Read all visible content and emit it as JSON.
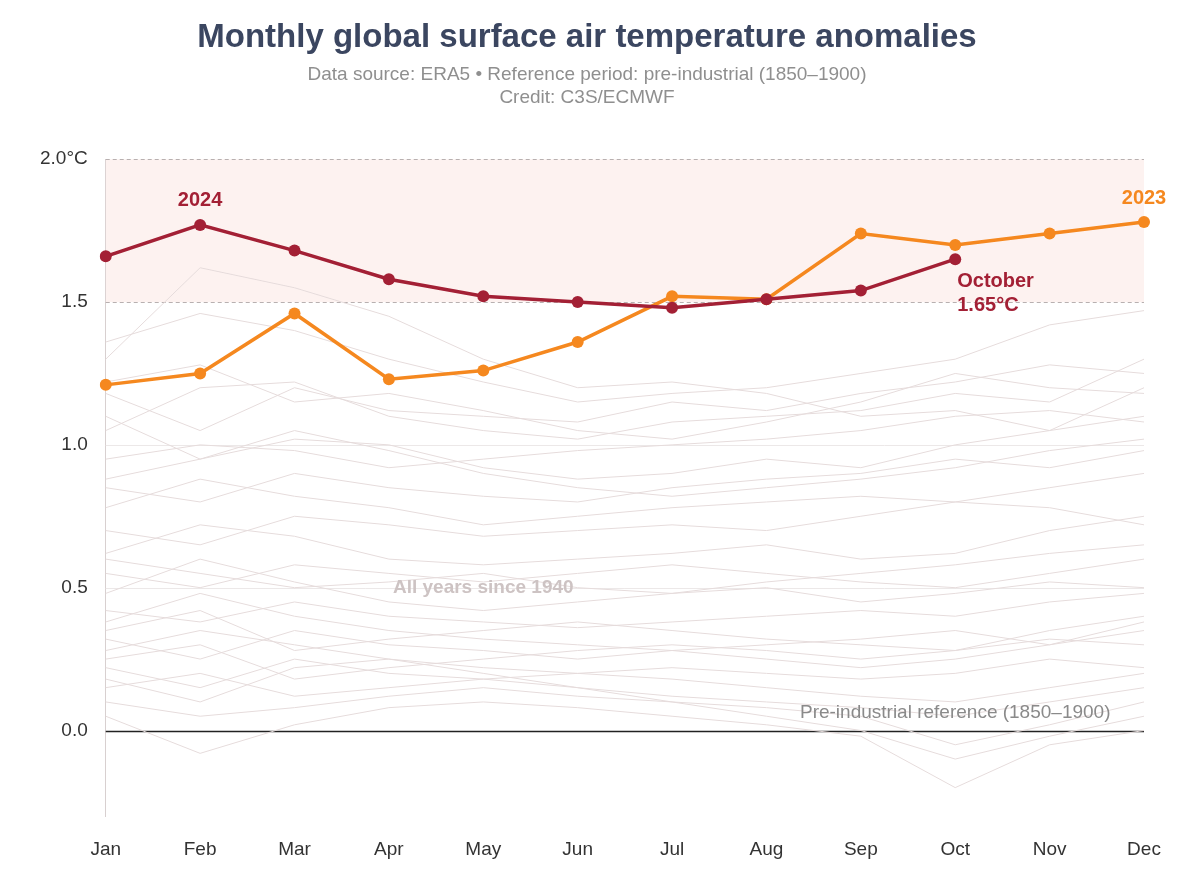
{
  "chart_data": {
    "type": "line",
    "title": "Monthly global surface air temperature anomalies",
    "subtitle": [
      "Data source: ERA5 • Reference period: pre-industrial (1850–1900)",
      "Credit: C3S/ECMWF"
    ],
    "categories": [
      "Jan",
      "Feb",
      "Mar",
      "Apr",
      "May",
      "Jun",
      "Jul",
      "Aug",
      "Sep",
      "Oct",
      "Nov",
      "Dec"
    ],
    "ylim": [
      -0.3,
      2.0
    ],
    "yticks": [
      {
        "value": 0,
        "label": "0.0"
      },
      {
        "value": 0.5,
        "label": "0.5"
      },
      {
        "value": 1,
        "label": "1.0"
      },
      {
        "value": 1.5,
        "label": "1.5"
      },
      {
        "value": 2,
        "label": "2.0°C"
      }
    ],
    "shaded_band": [
      1.5,
      2.0
    ],
    "grid": true,
    "series": [
      {
        "name": "2024",
        "color": "#a32035",
        "marker": "circle",
        "values": [
          1.66,
          1.77,
          1.68,
          1.58,
          1.52,
          1.5,
          1.48,
          1.51,
          1.54,
          1.65,
          null,
          null
        ]
      },
      {
        "name": "2023",
        "color": "#f5881f",
        "marker": "circle",
        "values": [
          1.21,
          1.25,
          1.46,
          1.23,
          1.26,
          1.36,
          1.52,
          1.51,
          1.74,
          1.7,
          1.74,
          1.78
        ]
      },
      {
        "color": "#e6dcdc",
        "marker": "none",
        "values": [
          1.36,
          1.46,
          1.4,
          1.3,
          1.22,
          1.15,
          1.18,
          1.2,
          1.25,
          1.3,
          1.42,
          1.47
        ]
      },
      {
        "color": "#e6dcdc",
        "marker": "none",
        "values": [
          1.3,
          1.62,
          1.55,
          1.45,
          1.3,
          1.2,
          1.22,
          1.18,
          1.1,
          1.12,
          1.05,
          1.2
        ]
      },
      {
        "color": "#e6dcdc",
        "marker": "none",
        "values": [
          1.18,
          1.05,
          1.2,
          1.12,
          1.1,
          1.08,
          1.15,
          1.12,
          1.18,
          1.22,
          1.28,
          1.25
        ]
      },
      {
        "color": "#e6dcdc",
        "marker": "none",
        "values": [
          1.05,
          1.2,
          1.22,
          1.1,
          1.05,
          1.02,
          1.08,
          1.1,
          1.12,
          1.18,
          1.15,
          1.3
        ]
      },
      {
        "color": "#e6dcdc",
        "marker": "none",
        "values": [
          0.95,
          1.0,
          0.98,
          0.92,
          0.95,
          0.98,
          1.0,
          1.02,
          1.05,
          1.1,
          1.12,
          1.08
        ]
      },
      {
        "color": "#e6dcdc",
        "marker": "none",
        "values": [
          1.1,
          0.95,
          1.02,
          1.0,
          0.92,
          0.88,
          0.9,
          0.95,
          0.92,
          1.0,
          1.05,
          1.1
        ]
      },
      {
        "color": "#e6dcdc",
        "marker": "none",
        "values": [
          0.85,
          0.8,
          0.9,
          0.85,
          0.82,
          0.8,
          0.85,
          0.88,
          0.9,
          0.95,
          0.92,
          0.98
        ]
      },
      {
        "color": "#e6dcdc",
        "marker": "none",
        "values": [
          0.78,
          0.88,
          0.82,
          0.78,
          0.72,
          0.75,
          0.78,
          0.8,
          0.82,
          0.8,
          0.85,
          0.9
        ]
      },
      {
        "color": "#e6dcdc",
        "marker": "none",
        "values": [
          0.7,
          0.65,
          0.75,
          0.72,
          0.68,
          0.7,
          0.72,
          0.7,
          0.75,
          0.8,
          0.78,
          0.72
        ]
      },
      {
        "color": "#e6dcdc",
        "marker": "none",
        "values": [
          0.62,
          0.72,
          0.68,
          0.6,
          0.58,
          0.6,
          0.62,
          0.65,
          0.6,
          0.62,
          0.7,
          0.75
        ]
      },
      {
        "color": "#e6dcdc",
        "marker": "none",
        "values": [
          0.55,
          0.5,
          0.58,
          0.55,
          0.52,
          0.55,
          0.58,
          0.55,
          0.52,
          0.5,
          0.55,
          0.6
        ]
      },
      {
        "color": "#e6dcdc",
        "marker": "none",
        "values": [
          0.48,
          0.6,
          0.52,
          0.45,
          0.42,
          0.45,
          0.48,
          0.5,
          0.45,
          0.48,
          0.52,
          0.5
        ]
      },
      {
        "color": "#e6dcdc",
        "marker": "none",
        "values": [
          0.42,
          0.38,
          0.45,
          0.4,
          0.38,
          0.36,
          0.38,
          0.4,
          0.42,
          0.4,
          0.45,
          0.48
        ]
      },
      {
        "color": "#e6dcdc",
        "marker": "none",
        "values": [
          0.38,
          0.48,
          0.4,
          0.35,
          0.32,
          0.3,
          0.28,
          0.3,
          0.32,
          0.35,
          0.3,
          0.38
        ]
      },
      {
        "color": "#e6dcdc",
        "marker": "none",
        "values": [
          0.32,
          0.25,
          0.35,
          0.3,
          0.28,
          0.25,
          0.28,
          0.25,
          0.22,
          0.25,
          0.3,
          0.35
        ]
      },
      {
        "color": "#e6dcdc",
        "marker": "none",
        "values": [
          0.28,
          0.35,
          0.3,
          0.25,
          0.22,
          0.2,
          0.22,
          0.2,
          0.18,
          0.2,
          0.25,
          0.22
        ]
      },
      {
        "color": "#e6dcdc",
        "marker": "none",
        "values": [
          0.22,
          0.15,
          0.25,
          0.2,
          0.18,
          0.2,
          0.18,
          0.15,
          0.12,
          0.1,
          0.15,
          0.2
        ]
      },
      {
        "color": "#e6dcdc",
        "marker": "none",
        "values": [
          0.15,
          0.2,
          0.12,
          0.15,
          0.18,
          0.15,
          0.12,
          0.1,
          0.08,
          0.05,
          0.1,
          0.15
        ]
      },
      {
        "color": "#e6dcdc",
        "marker": "none",
        "values": [
          0.1,
          0.05,
          0.08,
          0.12,
          0.15,
          0.12,
          0.1,
          0.08,
          0.05,
          -0.05,
          0.02,
          0.1
        ]
      },
      {
        "color": "#e6dcdc",
        "marker": "none",
        "values": [
          0.05,
          -0.08,
          0.02,
          0.08,
          0.1,
          0.08,
          0.05,
          0.02,
          -0.02,
          -0.2,
          -0.05,
          0.0
        ]
      },
      {
        "color": "#e6dcdc",
        "marker": "none",
        "values": [
          0.25,
          0.3,
          0.18,
          0.22,
          0.25,
          0.28,
          0.3,
          0.28,
          0.25,
          0.28,
          0.32,
          0.3
        ]
      },
      {
        "color": "#e6dcdc",
        "marker": "none",
        "values": [
          0.6,
          0.55,
          0.5,
          0.52,
          0.55,
          0.5,
          0.48,
          0.52,
          0.55,
          0.58,
          0.62,
          0.65
        ]
      },
      {
        "color": "#e6dcdc",
        "marker": "none",
        "values": [
          0.88,
          0.95,
          1.05,
          0.98,
          0.9,
          0.85,
          0.82,
          0.85,
          0.88,
          0.92,
          0.98,
          1.02
        ]
      },
      {
        "color": "#e6dcdc",
        "marker": "none",
        "values": [
          1.22,
          1.28,
          1.15,
          1.18,
          1.12,
          1.05,
          1.02,
          1.08,
          1.15,
          1.25,
          1.2,
          1.18
        ]
      },
      {
        "color": "#e6dcdc",
        "marker": "none",
        "values": [
          0.35,
          0.42,
          0.28,
          0.32,
          0.35,
          0.38,
          0.35,
          0.32,
          0.3,
          0.28,
          0.35,
          0.4
        ]
      },
      {
        "color": "#e6dcdc",
        "marker": "none",
        "values": [
          0.18,
          0.1,
          0.22,
          0.25,
          0.2,
          0.15,
          0.1,
          0.05,
          0.0,
          -0.1,
          -0.02,
          0.05
        ]
      }
    ],
    "annotations": [
      {
        "text": [
          "2024"
        ],
        "x": "Feb",
        "series": "2024",
        "position": "above",
        "color": "#a32035"
      },
      {
        "text": [
          "2023"
        ],
        "x": "Dec",
        "series": "2023",
        "position": "above",
        "color": "#f5881f"
      },
      {
        "text": [
          "October",
          "1.65°C"
        ],
        "x": "Oct",
        "series": "2024",
        "position": "below",
        "color": "#a32035"
      },
      {
        "text": [
          "All years since 1940"
        ],
        "x": "May",
        "y": 0.5,
        "position": "middle",
        "color": "#cdc3c3"
      },
      {
        "text": [
          "Pre-industrial reference (1850–1900)"
        ],
        "x": "Oct",
        "y": 0,
        "position": "above",
        "color": "#8a8a8a"
      }
    ],
    "legend": "none"
  }
}
